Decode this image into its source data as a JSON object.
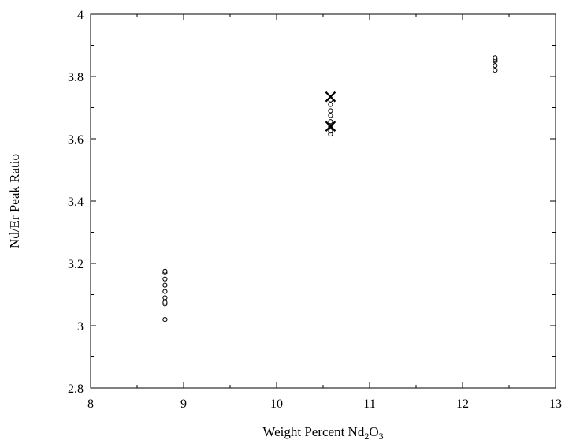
{
  "chart_data": {
    "type": "scatter",
    "title": "",
    "xlabel_main": "Weight Percent Nd",
    "xlabel_sub1": "2",
    "xlabel_mid": "O",
    "xlabel_sub2": "3",
    "ylabel": "Nd/Er Peak Ratio",
    "xlim": [
      8,
      13
    ],
    "ylim": [
      2.8,
      4
    ],
    "x_ticks": [
      8,
      9,
      10,
      11,
      12,
      13
    ],
    "x_tick_labels": [
      "8",
      "9",
      "10",
      "11",
      "12",
      "13"
    ],
    "y_ticks": [
      2.8,
      3,
      3.2,
      3.4,
      3.6,
      3.8,
      4
    ],
    "y_tick_labels": [
      "2.8",
      "3",
      "3.2",
      "3.4",
      "3.6",
      "3.8",
      "4"
    ],
    "grid": false,
    "series": [
      {
        "marker": "circle",
        "points": [
          [
            8.8,
            3.02
          ],
          [
            8.8,
            3.07
          ],
          [
            8.8,
            3.075
          ],
          [
            8.8,
            3.09
          ],
          [
            8.8,
            3.11
          ],
          [
            8.8,
            3.13
          ],
          [
            8.8,
            3.15
          ],
          [
            8.8,
            3.17
          ],
          [
            8.8,
            3.175
          ],
          [
            10.58,
            3.615
          ],
          [
            10.58,
            3.625
          ],
          [
            10.58,
            3.64
          ],
          [
            10.58,
            3.655
          ],
          [
            10.58,
            3.675
          ],
          [
            10.58,
            3.69
          ],
          [
            10.58,
            3.71
          ],
          [
            10.58,
            3.725
          ],
          [
            12.35,
            3.82
          ],
          [
            12.35,
            3.835
          ],
          [
            12.35,
            3.85
          ],
          [
            12.35,
            3.855
          ],
          [
            12.35,
            3.86
          ]
        ]
      },
      {
        "marker": "x",
        "points": [
          [
            10.58,
            3.735
          ],
          [
            10.58,
            3.64
          ]
        ]
      }
    ]
  }
}
